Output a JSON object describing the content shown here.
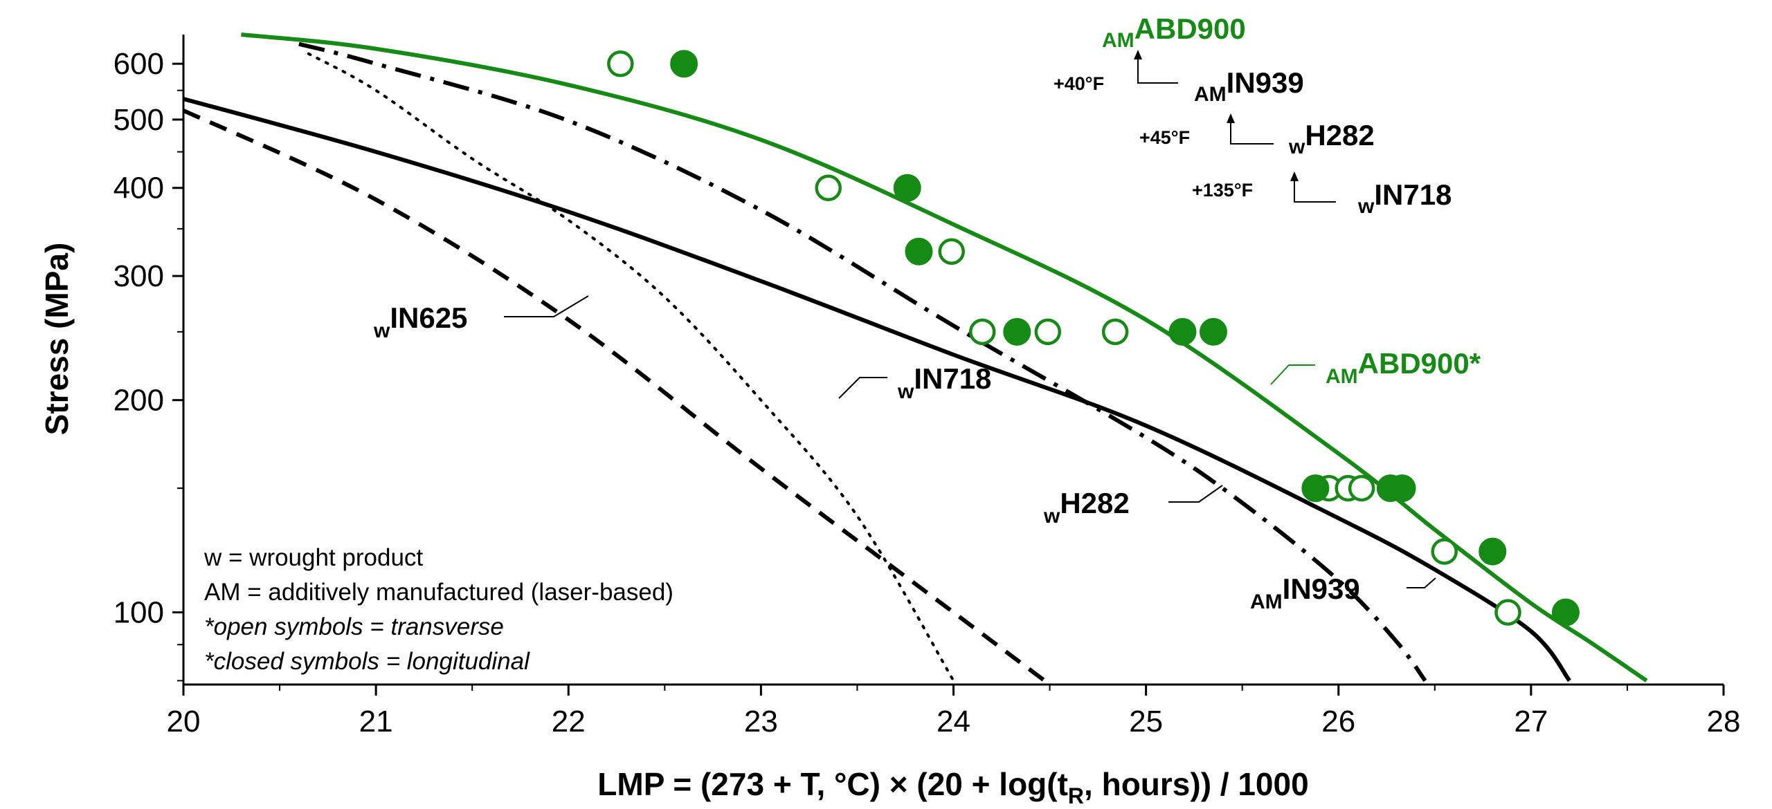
{
  "chart_data": {
    "type": "line",
    "x_axis": {
      "label_main": "LMP = (273 + T, °C) × (20 + log(t",
      "label_sub": "R",
      "label_end": ", hours)) / 1000",
      "range": [
        20,
        28
      ],
      "ticks": [
        {
          "value": 20,
          "label": "20"
        },
        {
          "value": 21,
          "label": "21"
        },
        {
          "value": 22,
          "label": "22"
        },
        {
          "value": 23,
          "label": "23"
        },
        {
          "value": 24,
          "label": "24"
        },
        {
          "value": 25,
          "label": "25"
        },
        {
          "value": 26,
          "label": "26"
        },
        {
          "value": 27,
          "label": "27"
        },
        {
          "value": 28,
          "label": "28"
        }
      ]
    },
    "y_axis": {
      "label": "Stress (MPa)",
      "scale": "log",
      "range": [
        79,
        660
      ],
      "ticks": [
        {
          "value": 100,
          "label": "100"
        },
        {
          "value": 200,
          "label": "200"
        },
        {
          "value": 300,
          "label": "300"
        },
        {
          "value": 400,
          "label": "400"
        },
        {
          "value": 500,
          "label": "500"
        },
        {
          "value": 600,
          "label": "600"
        }
      ]
    },
    "colors": {
      "green": "#158a15",
      "black": "#000000"
    },
    "series": [
      {
        "name": "ABD900*",
        "prefix": "AM",
        "color": "#158a15",
        "style": "solid",
        "points": [
          [
            20.3,
            660
          ],
          [
            21,
            630
          ],
          [
            22,
            560
          ],
          [
            23,
            468
          ],
          [
            24,
            355
          ],
          [
            25,
            260
          ],
          [
            26,
            168
          ],
          [
            26.5,
            131
          ],
          [
            27,
            103
          ],
          [
            27.3,
            91
          ],
          [
            27.6,
            80
          ]
        ]
      },
      {
        "name": "IN939",
        "prefix": "AM",
        "color": "#000000",
        "style": "dashdot",
        "points": [
          [
            20.6,
            640
          ],
          [
            21,
            600
          ],
          [
            22,
            498
          ],
          [
            23,
            372
          ],
          [
            24,
            255
          ],
          [
            25,
            177
          ],
          [
            25.5,
            143
          ],
          [
            26,
            111
          ],
          [
            26.3,
            91
          ],
          [
            26.45,
            80
          ]
        ]
      },
      {
        "name": "H282",
        "prefix": "w",
        "color": "#000000",
        "style": "solid",
        "points": [
          [
            20,
            535
          ],
          [
            21,
            450
          ],
          [
            22,
            370
          ],
          [
            23,
            295
          ],
          [
            24,
            232
          ],
          [
            25,
            184
          ],
          [
            26,
            136
          ],
          [
            26.5,
            115
          ],
          [
            27,
            94
          ],
          [
            27.2,
            80
          ]
        ]
      },
      {
        "name": "IN625",
        "prefix": "w",
        "color": "#000000",
        "style": "dashed",
        "points": [
          [
            20,
            515
          ],
          [
            21,
            385
          ],
          [
            22,
            260
          ],
          [
            23,
            160
          ],
          [
            24,
            100
          ],
          [
            24.5,
            79
          ]
        ]
      },
      {
        "name": "IN718",
        "prefix": "w",
        "color": "#000000",
        "style": "dotted",
        "points": [
          [
            20.65,
            620
          ],
          [
            21,
            550
          ],
          [
            21.5,
            440
          ],
          [
            22,
            360
          ],
          [
            22.5,
            280
          ],
          [
            23,
            200
          ],
          [
            23.5,
            137
          ],
          [
            24,
            80
          ]
        ]
      }
    ],
    "markers": {
      "open": [
        [
          22.27,
          600
        ],
        [
          23.35,
          400
        ],
        [
          23.99,
          325
        ],
        [
          24.15,
          250
        ],
        [
          24.49,
          250
        ],
        [
          24.84,
          250
        ],
        [
          25.95,
          150
        ],
        [
          26.05,
          150
        ],
        [
          26.12,
          150
        ],
        [
          26.55,
          122
        ],
        [
          26.88,
          100
        ]
      ],
      "closed": [
        [
          22.6,
          600
        ],
        [
          23.76,
          400
        ],
        [
          23.82,
          325
        ],
        [
          24.33,
          250
        ],
        [
          25.19,
          250
        ],
        [
          25.35,
          250
        ],
        [
          25.88,
          150
        ],
        [
          26.27,
          150
        ],
        [
          26.33,
          150
        ],
        [
          26.8,
          122
        ],
        [
          27.18,
          100
        ]
      ]
    },
    "series_labels": [
      {
        "id": "in625",
        "prefix": "w",
        "text": "IN625"
      },
      {
        "id": "in718",
        "prefix": "w",
        "text": "IN718"
      },
      {
        "id": "h282",
        "prefix": "w",
        "text": "H282"
      },
      {
        "id": "in939",
        "prefix": "AM",
        "text": "IN939"
      },
      {
        "id": "abd900",
        "prefix": "AM",
        "text": "ABD900*"
      }
    ],
    "temperature_ladder": [
      {
        "prefix": "AM",
        "text": "ABD900",
        "delta": "+40°F"
      },
      {
        "prefix": "AM",
        "text": "IN939",
        "delta": "+45°F"
      },
      {
        "prefix": "w",
        "text": "H282",
        "delta": "+135°F"
      },
      {
        "prefix": "w",
        "text": "IN718",
        "delta": ""
      }
    ],
    "legend_notes": [
      "w = wrought product",
      "AM = additively manufactured (laser-based)",
      "*open symbols = transverse",
      "*closed symbols = longitudinal"
    ],
    "grid": false
  }
}
